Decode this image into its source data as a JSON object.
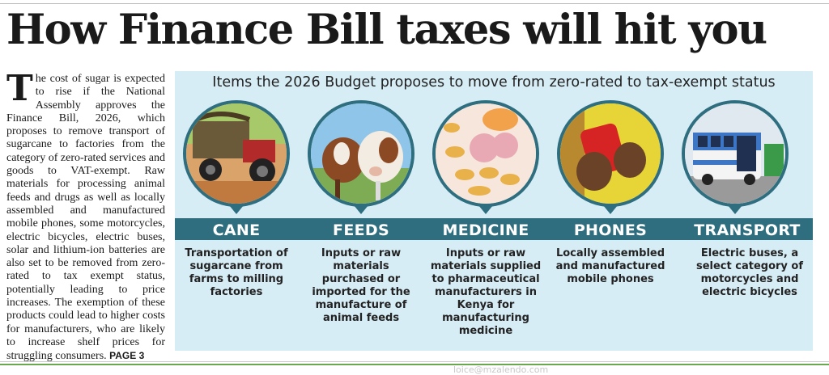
{
  "headline": "How Finance Bill taxes will hit you",
  "article": {
    "drop_cap": "T",
    "body": "he cost of sugar is expected to rise if the National Assembly approves the Finance Bill, 2026, which proposes to remove transport of sugarcane to factories from the category of zero-rated services and goods to VAT-exempt. Raw materials for processing animal feeds and drugs as well as locally assembled and manufactured mobile phones, some motorcycles, electric bicycles, electric buses, solar and lithium-ion batteries are also set to be removed from zero-rated to tax exempt status, potentially leading to price increases. The exemption of these products could lead to higher costs for manufacturers, who are likely to increase shelf prices for struggling consumers.",
    "page_ref": "PAGE 3"
  },
  "panel": {
    "title": "Items the 2026 Budget proposes to move from zero-rated to tax-exempt status",
    "items": [
      {
        "label": "CANE",
        "image": "sugarcane-tractor-image",
        "description": "Transportation of sugarcane from farms to milling factories"
      },
      {
        "label": "FEEDS",
        "image": "cows-image",
        "description": "Inputs or raw materials purchased or imported for the manufacture of animal feeds"
      },
      {
        "label": "MEDICINE",
        "image": "pills-image",
        "description": "Inputs or raw materials supplied to pharmaceutical manufacturers in Kenya for manufacturing medicine"
      },
      {
        "label": "PHONES",
        "image": "phone-hands-image",
        "description": "Locally assembled and manufactured mobile phones"
      },
      {
        "label": "TRANSPORT",
        "image": "electric-bus-image",
        "description": "Electric buses, a select category of motorcycles and electric bicycles"
      }
    ]
  },
  "colors": {
    "panel_bg": "#d7edf6",
    "band": "#2e6e7f",
    "headline": "#1a1a1a"
  },
  "footer_text": "loice@mzalendo.com"
}
